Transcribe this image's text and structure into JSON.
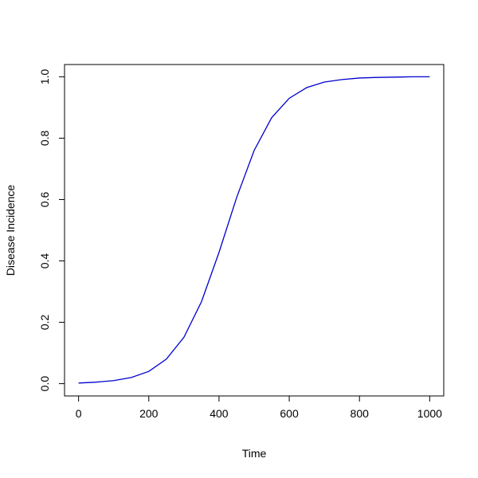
{
  "chart_data": {
    "type": "line",
    "xlabel": "Time",
    "ylabel": "Disease Incidence",
    "x": [
      0,
      50,
      100,
      150,
      200,
      250,
      300,
      350,
      400,
      450,
      500,
      550,
      600,
      650,
      700,
      750,
      800,
      850,
      900,
      950,
      1000
    ],
    "series": [
      {
        "color": "#0000cd",
        "values": [
          0.002,
          0.005,
          0.01,
          0.02,
          0.04,
          0.08,
          0.151,
          0.267,
          0.428,
          0.606,
          0.76,
          0.867,
          0.93,
          0.965,
          0.983,
          0.991,
          0.996,
          0.998,
          0.999,
          1.0,
          1.0
        ]
      }
    ],
    "xlim": [
      -40,
      1040
    ],
    "xticks": [
      0,
      200,
      400,
      600,
      800,
      1000
    ],
    "ylim": [
      -0.04,
      1.04
    ],
    "yticks": [
      {
        "value": 0,
        "label": "0.0"
      },
      {
        "value": 0.2,
        "label": "0.2"
      },
      {
        "value": 0.4,
        "label": "0.4"
      },
      {
        "value": 0.6,
        "label": "0.6"
      },
      {
        "value": 0.8,
        "label": "0.8"
      },
      {
        "value": 1.0,
        "label": "1.0"
      }
    ]
  }
}
